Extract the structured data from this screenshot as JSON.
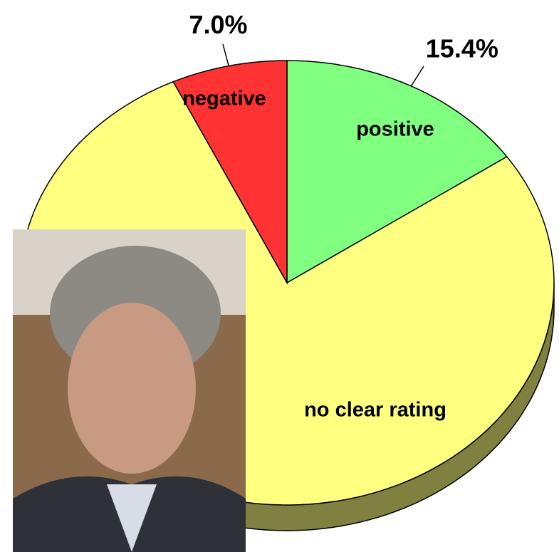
{
  "chart_data": {
    "type": "pie",
    "categories": [
      "positive",
      "no clear rating",
      "negative"
    ],
    "values": [
      15.4,
      77.6,
      7.0
    ],
    "value_labels": [
      "15.4%",
      null,
      "7.0%"
    ],
    "colors": [
      "#80ff80",
      "#ffff80",
      "#ff3333"
    ],
    "side_color": "#808040"
  }
}
